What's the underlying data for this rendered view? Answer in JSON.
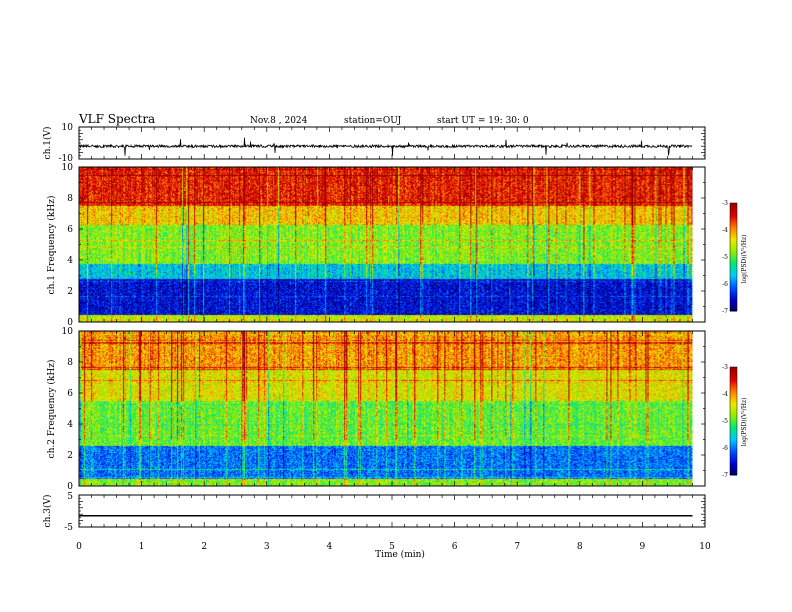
{
  "header": {
    "title": "VLF Spectra",
    "date": "Nov.8 , 2024",
    "station": "station=OUJ",
    "start": "start UT = 19: 30: 0"
  },
  "colors": {
    "spectrogram": [
      "#00005a",
      "#0000d0",
      "#0050ff",
      "#00c8ff",
      "#00e878",
      "#90ee00",
      "#f0e800",
      "#ff8000",
      "#e00000",
      "#9a0000"
    ]
  },
  "chart_data": [
    {
      "type": "line",
      "panel": "ch1-waveform",
      "ylabel": "ch.1(V)",
      "ylim": [
        -10,
        10
      ],
      "yticks": [
        "10",
        "-10"
      ],
      "baseline": -2,
      "description_values": {
        "mean_level": -2,
        "typical_spike_min": -7,
        "typical_spike_max": 3
      }
    },
    {
      "type": "heatmap",
      "panel": "ch1-spectrogram",
      "ylabel": "ch.1 Frequency (kHz)",
      "ylim": [
        0,
        10
      ],
      "yticks": [
        "0",
        "2",
        "4",
        "6",
        "8",
        "10"
      ],
      "xlim": [
        0,
        10
      ],
      "data_xmax": 9.8,
      "colorbar": {
        "label": "log(PSD)(V²/Hz)",
        "range": [
          -7,
          -3
        ],
        "ticks": [
          "-3",
          "-4",
          "-5",
          "-6",
          "-7"
        ]
      },
      "bands": [
        {
          "f_min": 0,
          "f_max": 0.5,
          "log_psd": -4.5
        },
        {
          "f_min": 0.5,
          "f_max": 2.8,
          "log_psd": -6.5
        },
        {
          "f_min": 2.8,
          "f_max": 3.8,
          "log_psd": -5.6
        },
        {
          "f_min": 3.8,
          "f_max": 6.3,
          "log_psd": -4.8
        },
        {
          "f_min": 6.3,
          "f_max": 7.5,
          "log_psd": -4.2
        },
        {
          "f_min": 7.5,
          "f_max": 10,
          "log_psd": -3.5
        }
      ]
    },
    {
      "type": "heatmap",
      "panel": "ch2-spectrogram",
      "ylabel": "ch.2 Frequency (kHz)",
      "ylim": [
        0,
        10
      ],
      "yticks": [
        "0",
        "2",
        "4",
        "6",
        "8",
        "10"
      ],
      "xlim": [
        0,
        10
      ],
      "data_xmax": 9.8,
      "colorbar": {
        "label": "log(PSD)(V²/Hz)",
        "range": [
          -7,
          -3
        ],
        "ticks": [
          "-3",
          "-4",
          "-5",
          "-6",
          "-7"
        ]
      },
      "bands": [
        {
          "f_min": 0,
          "f_max": 0.5,
          "log_psd": -4.8
        },
        {
          "f_min": 0.5,
          "f_max": 2.6,
          "log_psd": -6.0
        },
        {
          "f_min": 2.6,
          "f_max": 5.5,
          "log_psd": -4.9
        },
        {
          "f_min": 5.5,
          "f_max": 7.5,
          "log_psd": -4.4
        },
        {
          "f_min": 7.5,
          "f_max": 10,
          "log_psd": -4.0
        }
      ]
    },
    {
      "type": "line",
      "panel": "ch3-waveform",
      "ylabel": "ch.3(V)",
      "ylim": [
        -5,
        5
      ],
      "yticks": [
        "5",
        "-5"
      ],
      "x": [
        0,
        9.8
      ],
      "y": [
        -1.5,
        -1.5
      ]
    }
  ],
  "xaxis": {
    "label": "Time (min)",
    "ticks": [
      "0",
      "1",
      "2",
      "3",
      "4",
      "5",
      "6",
      "7",
      "8",
      "9",
      "10"
    ]
  }
}
